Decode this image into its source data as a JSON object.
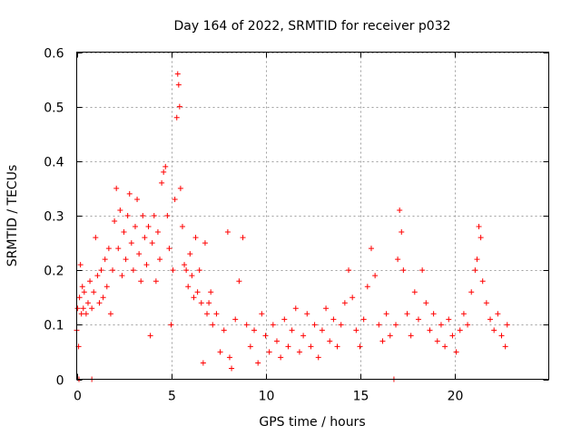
{
  "chart_data": {
    "type": "scatter",
    "title": "Day 164 of 2022, SRMTID for receiver p032",
    "xlabel": "GPS time / hours",
    "ylabel": "SRMTID / TECUs",
    "xlim": [
      0,
      25
    ],
    "ylim": [
      0,
      0.6
    ],
    "x_ticks": [
      0,
      5,
      10,
      15,
      20
    ],
    "x_tick_labels": [
      "0",
      "5",
      "10",
      "15",
      "20"
    ],
    "y_ticks": [
      0,
      0.1,
      0.2,
      0.3,
      0.4,
      0.5,
      0.6
    ],
    "y_tick_labels": [
      "0",
      "0.1",
      "0.2",
      "0.3",
      "0.4",
      "0.5",
      "0.6"
    ],
    "grid": true,
    "marker": "+",
    "color": "#ff0000",
    "series": [
      {
        "name": "p032",
        "points": [
          [
            0.0,
            0.09
          ],
          [
            0.05,
            0.13
          ],
          [
            0.1,
            0.06
          ],
          [
            0.12,
            0.0
          ],
          [
            0.15,
            0.15
          ],
          [
            0.2,
            0.21
          ],
          [
            0.25,
            0.12
          ],
          [
            0.3,
            0.17
          ],
          [
            0.35,
            0.13
          ],
          [
            0.4,
            0.16
          ],
          [
            0.5,
            0.12
          ],
          [
            0.6,
            0.14
          ],
          [
            0.7,
            0.18
          ],
          [
            0.8,
            0.0
          ],
          [
            0.8,
            0.13
          ],
          [
            0.9,
            0.16
          ],
          [
            1.0,
            0.26
          ],
          [
            1.1,
            0.19
          ],
          [
            1.2,
            0.14
          ],
          [
            1.3,
            0.2
          ],
          [
            1.4,
            0.15
          ],
          [
            1.5,
            0.22
          ],
          [
            1.6,
            0.17
          ],
          [
            1.7,
            0.24
          ],
          [
            1.8,
            0.12
          ],
          [
            1.9,
            0.2
          ],
          [
            2.0,
            0.29
          ],
          [
            2.1,
            0.35
          ],
          [
            2.2,
            0.24
          ],
          [
            2.3,
            0.31
          ],
          [
            2.4,
            0.19
          ],
          [
            2.5,
            0.27
          ],
          [
            2.6,
            0.22
          ],
          [
            2.7,
            0.3
          ],
          [
            2.8,
            0.34
          ],
          [
            2.9,
            0.25
          ],
          [
            3.0,
            0.2
          ],
          [
            3.1,
            0.28
          ],
          [
            3.2,
            0.33
          ],
          [
            3.3,
            0.23
          ],
          [
            3.4,
            0.18
          ],
          [
            3.5,
            0.3
          ],
          [
            3.6,
            0.26
          ],
          [
            3.7,
            0.21
          ],
          [
            3.8,
            0.28
          ],
          [
            3.9,
            0.08
          ],
          [
            4.0,
            0.25
          ],
          [
            4.1,
            0.3
          ],
          [
            4.2,
            0.18
          ],
          [
            4.3,
            0.27
          ],
          [
            4.4,
            0.22
          ],
          [
            4.5,
            0.36
          ],
          [
            4.6,
            0.38
          ],
          [
            4.7,
            0.39
          ],
          [
            4.8,
            0.3
          ],
          [
            4.9,
            0.24
          ],
          [
            5.0,
            0.1
          ],
          [
            5.1,
            0.2
          ],
          [
            5.2,
            0.33
          ],
          [
            5.3,
            0.48
          ],
          [
            5.35,
            0.56
          ],
          [
            5.4,
            0.54
          ],
          [
            5.45,
            0.5
          ],
          [
            5.5,
            0.35
          ],
          [
            5.6,
            0.28
          ],
          [
            5.7,
            0.21
          ],
          [
            5.8,
            0.2
          ],
          [
            5.9,
            0.17
          ],
          [
            6.0,
            0.23
          ],
          [
            6.1,
            0.19
          ],
          [
            6.2,
            0.15
          ],
          [
            6.3,
            0.26
          ],
          [
            6.4,
            0.16
          ],
          [
            6.5,
            0.2
          ],
          [
            6.6,
            0.14
          ],
          [
            6.7,
            0.03
          ],
          [
            6.8,
            0.25
          ],
          [
            6.9,
            0.12
          ],
          [
            7.0,
            0.14
          ],
          [
            7.1,
            0.16
          ],
          [
            7.2,
            0.1
          ],
          [
            7.4,
            0.12
          ],
          [
            7.6,
            0.05
          ],
          [
            7.8,
            0.09
          ],
          [
            8.0,
            0.27
          ],
          [
            8.1,
            0.04
          ],
          [
            8.2,
            0.02
          ],
          [
            8.4,
            0.11
          ],
          [
            8.6,
            0.18
          ],
          [
            8.8,
            0.26
          ],
          [
            9.0,
            0.1
          ],
          [
            9.2,
            0.06
          ],
          [
            9.4,
            0.09
          ],
          [
            9.6,
            0.03
          ],
          [
            9.8,
            0.12
          ],
          [
            10.0,
            0.08
          ],
          [
            10.2,
            0.05
          ],
          [
            10.4,
            0.1
          ],
          [
            10.6,
            0.07
          ],
          [
            10.8,
            0.04
          ],
          [
            11.0,
            0.11
          ],
          [
            11.2,
            0.06
          ],
          [
            11.4,
            0.09
          ],
          [
            11.6,
            0.13
          ],
          [
            11.8,
            0.05
          ],
          [
            12.0,
            0.08
          ],
          [
            12.2,
            0.12
          ],
          [
            12.4,
            0.06
          ],
          [
            12.6,
            0.1
          ],
          [
            12.8,
            0.04
          ],
          [
            13.0,
            0.09
          ],
          [
            13.2,
            0.13
          ],
          [
            13.4,
            0.07
          ],
          [
            13.6,
            0.11
          ],
          [
            13.8,
            0.06
          ],
          [
            14.0,
            0.1
          ],
          [
            14.2,
            0.14
          ],
          [
            14.4,
            0.2
          ],
          [
            14.6,
            0.15
          ],
          [
            14.8,
            0.09
          ],
          [
            15.0,
            0.06
          ],
          [
            15.2,
            0.11
          ],
          [
            15.4,
            0.17
          ],
          [
            15.6,
            0.24
          ],
          [
            15.8,
            0.19
          ],
          [
            16.0,
            0.1
          ],
          [
            16.2,
            0.07
          ],
          [
            16.4,
            0.12
          ],
          [
            16.6,
            0.08
          ],
          [
            16.8,
            0.0
          ],
          [
            16.9,
            0.1
          ],
          [
            17.0,
            0.22
          ],
          [
            17.1,
            0.31
          ],
          [
            17.2,
            0.27
          ],
          [
            17.3,
            0.2
          ],
          [
            17.5,
            0.12
          ],
          [
            17.7,
            0.08
          ],
          [
            17.9,
            0.16
          ],
          [
            18.1,
            0.11
          ],
          [
            18.3,
            0.2
          ],
          [
            18.5,
            0.14
          ],
          [
            18.7,
            0.09
          ],
          [
            18.9,
            0.12
          ],
          [
            19.1,
            0.07
          ],
          [
            19.3,
            0.1
          ],
          [
            19.5,
            0.06
          ],
          [
            19.7,
            0.11
          ],
          [
            19.9,
            0.08
          ],
          [
            20.1,
            0.05
          ],
          [
            20.3,
            0.09
          ],
          [
            20.5,
            0.12
          ],
          [
            20.7,
            0.1
          ],
          [
            20.9,
            0.16
          ],
          [
            21.1,
            0.2
          ],
          [
            21.2,
            0.22
          ],
          [
            21.3,
            0.28
          ],
          [
            21.4,
            0.26
          ],
          [
            21.5,
            0.18
          ],
          [
            21.7,
            0.14
          ],
          [
            21.9,
            0.11
          ],
          [
            22.1,
            0.09
          ],
          [
            22.3,
            0.12
          ],
          [
            22.5,
            0.08
          ],
          [
            22.7,
            0.06
          ],
          [
            22.8,
            0.1
          ]
        ]
      }
    ]
  }
}
